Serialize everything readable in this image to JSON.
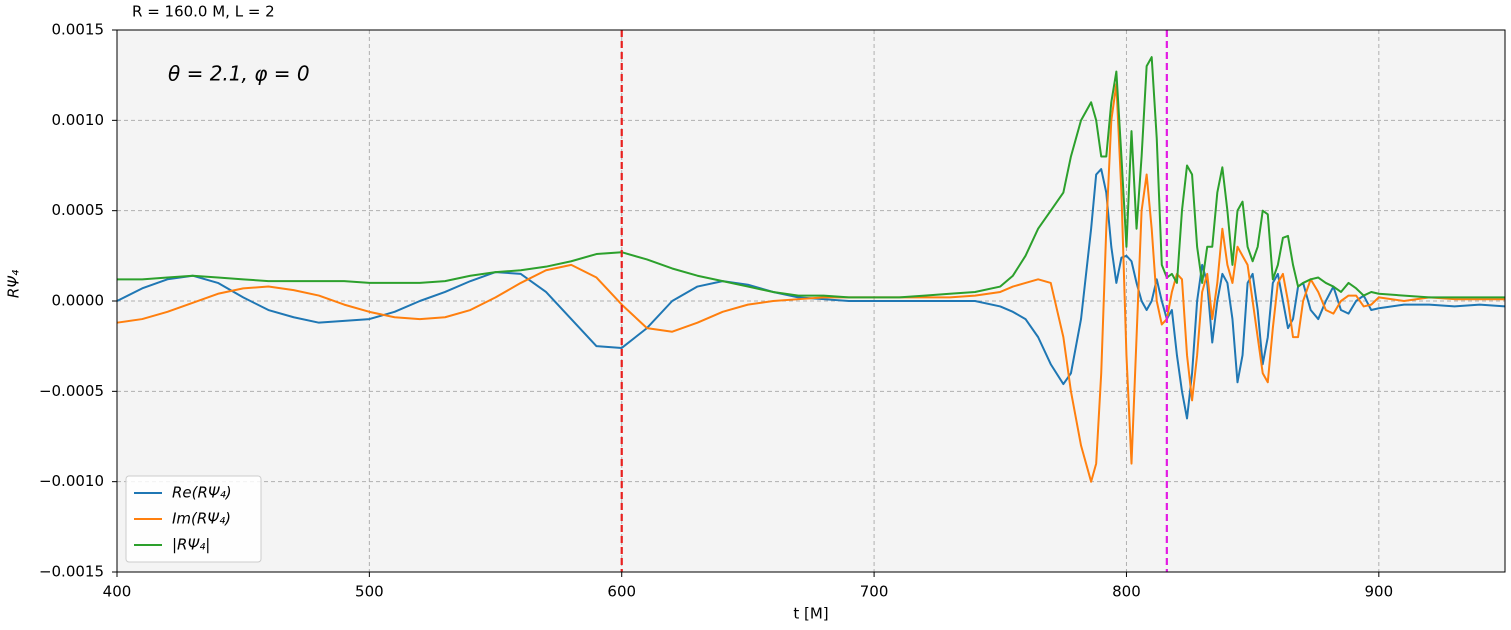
{
  "chart_data": {
    "type": "line",
    "title": "R = 160.0 M, L = 2",
    "annotation": "θ = 2.1, φ = 0",
    "x_label": "t [M]",
    "y_label": "RΨ₄",
    "x": [
      400,
      410,
      420,
      430,
      440,
      450,
      460,
      470,
      480,
      490,
      500,
      510,
      520,
      530,
      540,
      550,
      560,
      570,
      580,
      590,
      600,
      610,
      620,
      630,
      640,
      650,
      660,
      670,
      680,
      690,
      700,
      710,
      720,
      730,
      740,
      750,
      755,
      760,
      765,
      770,
      775,
      778,
      782,
      786,
      788,
      790,
      792,
      794,
      796,
      798,
      800,
      802,
      804,
      806,
      808,
      810,
      812,
      814,
      816,
      818,
      820,
      822,
      824,
      826,
      828,
      830,
      832,
      834,
      836,
      838,
      840,
      842,
      844,
      846,
      848,
      850,
      852,
      854,
      856,
      858,
      860,
      862,
      864,
      866,
      868,
      870,
      873,
      876,
      879,
      882,
      885,
      888,
      891,
      894,
      897,
      900,
      910,
      920,
      930,
      940,
      950
    ],
    "series": [
      {
        "name": "Re(RΨ₄)",
        "color": "#1f77b4",
        "values": [
          0,
          7e-05,
          0.00012,
          0.00014,
          0.0001,
          2e-05,
          -5e-05,
          -9e-05,
          -0.00012,
          -0.00011,
          -0.0001,
          -6e-05,
          0,
          5e-05,
          0.00011,
          0.00016,
          0.00015,
          5e-05,
          -0.0001,
          -0.00025,
          -0.00026,
          -0.00015,
          0,
          8e-05,
          0.00011,
          9e-05,
          5e-05,
          2e-05,
          1e-05,
          0,
          0,
          0,
          0,
          0,
          0,
          -3e-05,
          -6e-05,
          -0.0001,
          -0.0002,
          -0.00035,
          -0.00046,
          -0.0004,
          -0.0001,
          0.0004,
          0.0007,
          0.00073,
          0.0006,
          0.0003,
          0.0001,
          0.00024,
          0.00025,
          0.00022,
          0.0001,
          0,
          -5e-05,
          0,
          0.00012,
          0,
          -0.0001,
          -5e-05,
          -0.0003,
          -0.0005,
          -0.00065,
          -0.0004,
          0,
          0.0002,
          0.0001,
          -0.00023,
          0,
          0.00015,
          0.0001,
          -0.0001,
          -0.00045,
          -0.0003,
          0.0001,
          0.00015,
          -5e-05,
          -0.00035,
          -0.0002,
          0.0001,
          0.00015,
          0,
          -0.00015,
          -0.0001,
          8e-05,
          0.0001,
          -5e-05,
          -0.0001,
          0,
          8e-05,
          -5e-05,
          -7e-05,
          0,
          3e-05,
          -5e-05,
          -4e-05,
          -2e-05,
          -2e-05,
          -3e-05,
          -2e-05,
          -3e-05
        ]
      },
      {
        "name": "Im(RΨ₄)",
        "color": "#ff7f0e",
        "values": [
          -0.00012,
          -0.0001,
          -6e-05,
          -1e-05,
          4e-05,
          7e-05,
          8e-05,
          6e-05,
          3e-05,
          -2e-05,
          -6e-05,
          -9e-05,
          -0.0001,
          -9e-05,
          -5e-05,
          2e-05,
          0.0001,
          0.00017,
          0.0002,
          0.00013,
          -2e-05,
          -0.00015,
          -0.00017,
          -0.00012,
          -6e-05,
          -2e-05,
          0,
          1e-05,
          2e-05,
          2e-05,
          2e-05,
          2e-05,
          2e-05,
          2e-05,
          3e-05,
          5e-05,
          8e-05,
          0.0001,
          0.00012,
          0.0001,
          -0.0002,
          -0.0005,
          -0.0008,
          -0.001,
          -0.0009,
          -0.0004,
          0.0004,
          0.001,
          0.0012,
          0.0006,
          -0.0003,
          -0.0009,
          -0.0002,
          0.0005,
          0.0007,
          0.0004,
          0,
          -0.00013,
          -0.0001,
          5e-05,
          0.00015,
          0.00012,
          -0.0003,
          -0.00055,
          -0.0003,
          5e-05,
          0.00015,
          -0.0001,
          0.0001,
          0.0004,
          0.0002,
          0.0001,
          0.0003,
          0.00025,
          0.0002,
          0,
          -0.0002,
          -0.0004,
          -0.00045,
          -0.00015,
          0.0001,
          0.00015,
          0,
          -0.0002,
          -0.0002,
          0,
          0.00012,
          5e-05,
          -5e-05,
          -7e-05,
          0,
          3e-05,
          3e-05,
          -3e-05,
          -2e-05,
          2e-05,
          0,
          2e-05,
          1e-05,
          1e-05,
          1e-05
        ]
      },
      {
        "name": "|RΨ₄|",
        "color": "#2ca02c",
        "values": [
          0.00012,
          0.00012,
          0.00013,
          0.00014,
          0.00013,
          0.00012,
          0.00011,
          0.00011,
          0.00011,
          0.00011,
          0.0001,
          0.0001,
          0.0001,
          0.00011,
          0.00014,
          0.00016,
          0.00017,
          0.00019,
          0.00022,
          0.00026,
          0.00027,
          0.00023,
          0.00018,
          0.00014,
          0.00011,
          8e-05,
          5e-05,
          3e-05,
          3e-05,
          2e-05,
          2e-05,
          2e-05,
          3e-05,
          4e-05,
          5e-05,
          8e-05,
          0.00014,
          0.00025,
          0.0004,
          0.0005,
          0.0006,
          0.0008,
          0.001,
          0.0011,
          0.001,
          0.0008,
          0.0008,
          0.0011,
          0.00127,
          0.0008,
          0.0003,
          0.00094,
          0.0004,
          0.0008,
          0.0013,
          0.00135,
          0.0009,
          0.0002,
          0.00013,
          0.00015,
          0.0001,
          0.0005,
          0.00075,
          0.0007,
          0.0003,
          0.0001,
          0.0003,
          0.0003,
          0.0006,
          0.00074,
          0.0005,
          0.0002,
          0.0005,
          0.00055,
          0.0003,
          0.00022,
          0.0003,
          0.0005,
          0.00048,
          0.00012,
          0.0002,
          0.00035,
          0.00036,
          0.0002,
          8e-05,
          0.0001,
          0.00012,
          0.00013,
          0.0001,
          8e-05,
          5e-05,
          0.0001,
          7e-05,
          3e-05,
          5e-05,
          4e-05,
          3e-05,
          2e-05,
          2e-05,
          2e-05,
          2e-05
        ]
      }
    ],
    "vlines": [
      {
        "x": 600,
        "color": "#e8201e"
      },
      {
        "x": 816,
        "color": "#e31ae3"
      }
    ],
    "xlim": [
      400,
      950
    ],
    "ylim": [
      -0.0015,
      0.0015
    ],
    "xticks": [
      400,
      500,
      600,
      700,
      800,
      900
    ],
    "yticks": [
      {
        "value": 0.0015,
        "label": "0.0015"
      },
      {
        "value": 0.001,
        "label": "0.0010"
      },
      {
        "value": 0.0005,
        "label": "0.0005"
      },
      {
        "value": 0,
        "label": "0.0000"
      },
      {
        "value": -0.0005,
        "label": "−0.0005"
      },
      {
        "value": -0.001,
        "label": "−0.0010"
      },
      {
        "value": -0.0015,
        "label": "−0.0015"
      }
    ],
    "grid": true,
    "legend": "lower left"
  }
}
